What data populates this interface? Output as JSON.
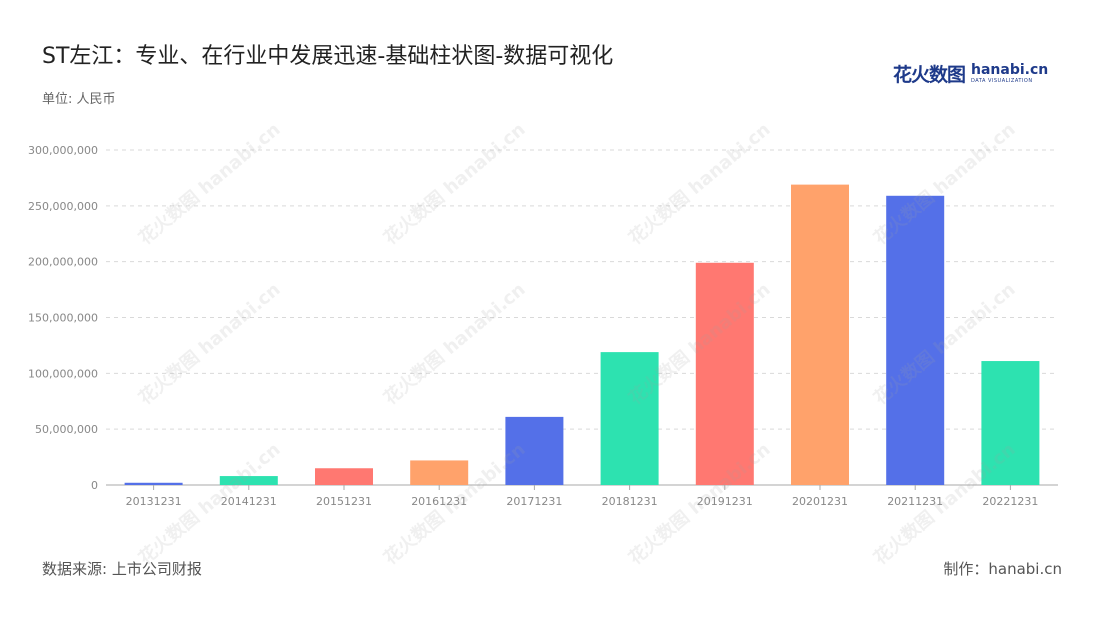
{
  "header": {
    "title": "ST左江：专业、在行业中发展迅速-基础柱状图-数据可视化",
    "unit": "单位: 人民币"
  },
  "logo": {
    "cn": "花火数图",
    "en": "hanabi.cn",
    "sub": "DATA VISUALIZATION"
  },
  "footer": {
    "source": "数据来源: 上市公司财报",
    "made_by": "制作：hanabi.cn"
  },
  "watermark": "花火数图 hanabi.cn",
  "chart_data": {
    "type": "bar",
    "categories": [
      "20131231",
      "20141231",
      "20151231",
      "20161231",
      "20171231",
      "20181231",
      "20191231",
      "20201231",
      "20211231",
      "20221231"
    ],
    "values": [
      2000000,
      8000000,
      15000000,
      22000000,
      61000000,
      119000000,
      199000000,
      269000000,
      259000000,
      111000000
    ],
    "colors": [
      "#5470e8",
      "#2de2b0",
      "#ff7871",
      "#ffa26b",
      "#5470e8",
      "#2de2b0",
      "#ff7871",
      "#ffa26b",
      "#5470e8",
      "#2de2b0"
    ],
    "ylim": [
      0,
      300000000
    ],
    "yticks": [
      "0",
      "50,000,000",
      "100,000,000",
      "150,000,000",
      "200,000,000",
      "250,000,000",
      "300,000,000"
    ],
    "grid": true
  }
}
